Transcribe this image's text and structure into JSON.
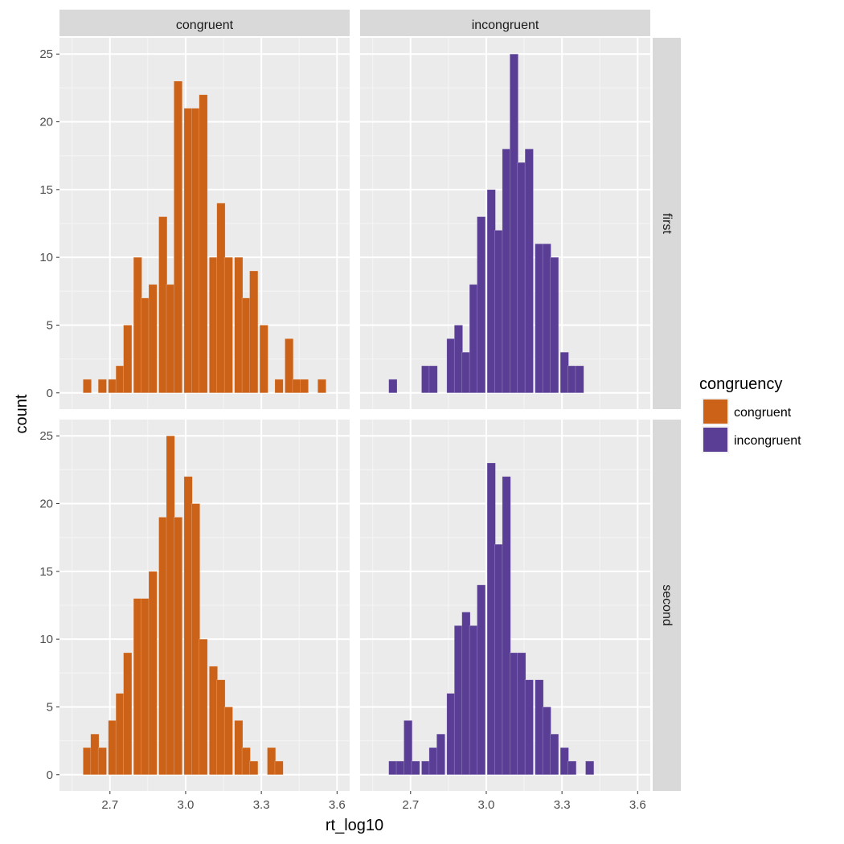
{
  "chart_data": {
    "type": "bar",
    "subtype": "faceted-histogram",
    "xlabel": "rt_log10",
    "ylabel": "count",
    "xlim": [
      2.5,
      3.65
    ],
    "ylim": [
      -1.2,
      26.2
    ],
    "x_ticks": [
      2.7,
      3.0,
      3.3,
      3.6
    ],
    "x_tick_labels": [
      "2.7",
      "3.0",
      "3.3",
      "3.6"
    ],
    "y_ticks": [
      0,
      5,
      10,
      15,
      20,
      25
    ],
    "y_tick_labels": [
      "0",
      "5",
      "10",
      "15",
      "20",
      "25"
    ],
    "bin_width": 0.033,
    "grid": true,
    "column_facets": [
      "congruent",
      "incongruent"
    ],
    "row_facets": [
      "first",
      "second"
    ],
    "legend": {
      "title": "congruency",
      "position": "right",
      "entries": [
        {
          "label": "congruent",
          "color": "#CC6218"
        },
        {
          "label": "incongruent",
          "color": "#5A3E96"
        }
      ]
    },
    "panels": [
      {
        "column": "congruent",
        "row": "first",
        "color": "#CC6218",
        "bins": [
          [
            2.61,
            1
          ],
          [
            2.64,
            0
          ],
          [
            2.67,
            1
          ],
          [
            2.71,
            1
          ],
          [
            2.74,
            2
          ],
          [
            2.77,
            5
          ],
          [
            2.81,
            10
          ],
          [
            2.84,
            7
          ],
          [
            2.87,
            8
          ],
          [
            2.91,
            13
          ],
          [
            2.94,
            8
          ],
          [
            2.97,
            23
          ],
          [
            3.01,
            21
          ],
          [
            3.04,
            21
          ],
          [
            3.07,
            22
          ],
          [
            3.11,
            10
          ],
          [
            3.14,
            14
          ],
          [
            3.17,
            10
          ],
          [
            3.21,
            10
          ],
          [
            3.24,
            7
          ],
          [
            3.27,
            9
          ],
          [
            3.31,
            5
          ],
          [
            3.34,
            0
          ],
          [
            3.37,
            1
          ],
          [
            3.41,
            4
          ],
          [
            3.44,
            1
          ],
          [
            3.47,
            1
          ],
          [
            3.51,
            0
          ],
          [
            3.54,
            1
          ]
        ]
      },
      {
        "column": "incongruent",
        "row": "first",
        "color": "#5A3E96",
        "bins": [
          [
            2.63,
            1
          ],
          [
            2.66,
            0
          ],
          [
            2.69,
            0
          ],
          [
            2.72,
            0
          ],
          [
            2.76,
            2
          ],
          [
            2.79,
            2
          ],
          [
            2.82,
            0
          ],
          [
            2.86,
            4
          ],
          [
            2.89,
            5
          ],
          [
            2.92,
            3
          ],
          [
            2.95,
            8
          ],
          [
            2.98,
            13
          ],
          [
            3.02,
            15
          ],
          [
            3.05,
            12
          ],
          [
            3.08,
            18
          ],
          [
            3.11,
            25
          ],
          [
            3.14,
            17
          ],
          [
            3.17,
            18
          ],
          [
            3.21,
            11
          ],
          [
            3.24,
            11
          ],
          [
            3.27,
            10
          ],
          [
            3.31,
            3
          ],
          [
            3.34,
            2
          ],
          [
            3.37,
            2
          ]
        ]
      },
      {
        "column": "congruent",
        "row": "second",
        "color": "#CC6218",
        "bins": [
          [
            2.61,
            2
          ],
          [
            2.64,
            3
          ],
          [
            2.67,
            2
          ],
          [
            2.71,
            4
          ],
          [
            2.74,
            6
          ],
          [
            2.77,
            9
          ],
          [
            2.81,
            13
          ],
          [
            2.84,
            13
          ],
          [
            2.87,
            15
          ],
          [
            2.91,
            19
          ],
          [
            2.94,
            25
          ],
          [
            2.97,
            19
          ],
          [
            3.01,
            22
          ],
          [
            3.04,
            20
          ],
          [
            3.07,
            10
          ],
          [
            3.11,
            8
          ],
          [
            3.14,
            7
          ],
          [
            3.17,
            5
          ],
          [
            3.21,
            4
          ],
          [
            3.24,
            2
          ],
          [
            3.27,
            1
          ],
          [
            3.31,
            0
          ],
          [
            3.34,
            2
          ],
          [
            3.37,
            1
          ]
        ]
      },
      {
        "column": "incongruent",
        "row": "second",
        "color": "#5A3E96",
        "bins": [
          [
            2.63,
            1
          ],
          [
            2.66,
            1
          ],
          [
            2.69,
            4
          ],
          [
            2.72,
            1
          ],
          [
            2.76,
            1
          ],
          [
            2.79,
            2
          ],
          [
            2.82,
            3
          ],
          [
            2.86,
            6
          ],
          [
            2.89,
            11
          ],
          [
            2.92,
            12
          ],
          [
            2.95,
            11
          ],
          [
            2.98,
            14
          ],
          [
            3.02,
            23
          ],
          [
            3.05,
            17
          ],
          [
            3.08,
            22
          ],
          [
            3.11,
            9
          ],
          [
            3.14,
            9
          ],
          [
            3.17,
            7
          ],
          [
            3.21,
            7
          ],
          [
            3.24,
            5
          ],
          [
            3.27,
            3
          ],
          [
            3.31,
            2
          ],
          [
            3.34,
            1
          ],
          [
            3.37,
            0
          ],
          [
            3.41,
            1
          ]
        ]
      }
    ]
  }
}
